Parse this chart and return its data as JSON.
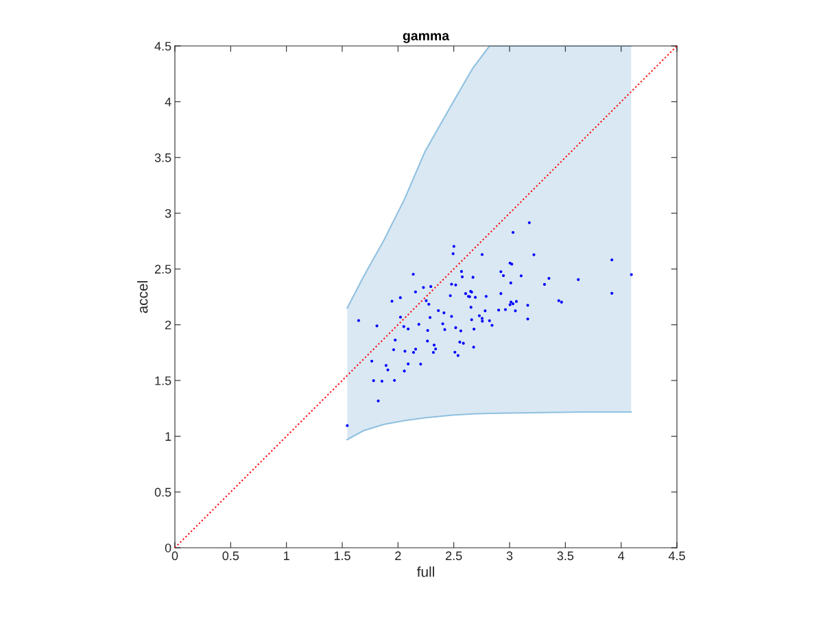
{
  "chart_data": {
    "type": "scatter",
    "title": "gamma",
    "xlabel": "full",
    "ylabel": "accel",
    "xlim": [
      0,
      4.5
    ],
    "ylim": [
      0,
      4.5
    ],
    "xticks": [
      0,
      0.5,
      1,
      1.5,
      2,
      2.5,
      3,
      3.5,
      4,
      4.5
    ],
    "yticks": [
      0,
      0.5,
      1,
      1.5,
      2,
      2.5,
      3,
      3.5,
      4,
      4.5
    ],
    "grid": false,
    "series": [
      {
        "type": "line",
        "color": "#8fc0e0",
        "line_style": "solid",
        "marker": "none",
        "x": [
          1.545,
          1.69,
          1.875,
          2.06,
          2.24,
          2.49,
          2.67,
          2.82,
          3.1,
          3.66,
          4.09
        ],
        "values": [
          0.97,
          1.05,
          1.107,
          1.14,
          1.165,
          1.19,
          1.2,
          1.205,
          1.21,
          1.217,
          1.217
        ]
      },
      {
        "type": "area",
        "color": "#8fc0e0",
        "x": [
          1.545,
          1.69,
          1.875,
          2.06,
          2.24,
          2.49,
          2.67,
          2.82,
          3.1,
          3.66,
          4.09
        ],
        "values": [
          2.15,
          2.43,
          2.76,
          3.13,
          3.55,
          3.99,
          4.3,
          4.5,
          4.5,
          4.5,
          4.5
        ]
      },
      {
        "type": "line",
        "color": "#ff0000",
        "line_style": "dotted",
        "marker": "none",
        "x": [
          0,
          4.5
        ],
        "values": [
          0,
          4.5
        ]
      },
      {
        "color": "#0000ff",
        "marker": "circle",
        "x": [
          1.545,
          1.647,
          1.765,
          1.781,
          1.811,
          1.823,
          1.856,
          1.893,
          1.909,
          1.946,
          1.961,
          1.968,
          1.975,
          2.021,
          2.022,
          2.052,
          2.057,
          2.062,
          2.091,
          2.091,
          2.137,
          2.157,
          2.139,
          2.158,
          2.187,
          2.203,
          2.228,
          2.253,
          2.266,
          2.264,
          2.276,
          2.287,
          2.294,
          2.317,
          2.324,
          2.337,
          2.362,
          2.401,
          2.412,
          2.419,
          2.469,
          2.48,
          2.48,
          2.494,
          2.501,
          2.517,
          2.517,
          2.51,
          2.538,
          2.554,
          2.563,
          2.569,
          2.576,
          2.586,
          2.606,
          2.631,
          2.642,
          2.651,
          2.66,
          2.654,
          2.66,
          2.672,
          2.681,
          2.678,
          2.693,
          2.729,
          2.754,
          2.754,
          2.756,
          2.781,
          2.79,
          2.82,
          2.843,
          2.902,
          2.922,
          2.922,
          2.945,
          2.963,
          3.004,
          3.02,
          3.011,
          3.013,
          3.004,
          3.031,
          3.061,
          3.052,
          3.031,
          3.104,
          3.163,
          3.163,
          3.177,
          3.218,
          3.313,
          3.353,
          3.441,
          3.466,
          3.616,
          3.917,
          3.917,
          4.092
        ],
        "values": [
          1.096,
          2.038,
          1.674,
          1.499,
          1.99,
          1.317,
          1.494,
          1.635,
          1.595,
          2.211,
          1.776,
          1.501,
          1.863,
          2.243,
          2.068,
          1.984,
          1.585,
          1.763,
          1.649,
          1.963,
          2.453,
          2.295,
          1.752,
          1.781,
          2.004,
          1.647,
          2.334,
          2.216,
          1.949,
          1.854,
          2.184,
          2.065,
          2.343,
          1.752,
          1.818,
          1.783,
          2.127,
          2.009,
          2.107,
          1.957,
          2.261,
          2.364,
          2.075,
          2.637,
          2.703,
          2.357,
          1.974,
          1.754,
          1.724,
          1.845,
          1.945,
          2.478,
          2.43,
          1.834,
          2.28,
          2.255,
          2.252,
          2.3,
          2.293,
          2.157,
          2.045,
          2.426,
          1.961,
          1.799,
          2.246,
          2.081,
          2.63,
          2.057,
          2.032,
          2.125,
          2.255,
          2.036,
          1.995,
          2.132,
          2.476,
          2.28,
          2.441,
          2.136,
          2.553,
          2.544,
          2.375,
          2.204,
          2.18,
          2.188,
          2.209,
          2.125,
          2.828,
          2.439,
          2.175,
          2.052,
          2.915,
          2.628,
          2.362,
          2.416,
          2.216,
          2.203,
          2.405,
          2.582,
          2.282,
          2.45
        ]
      }
    ]
  }
}
